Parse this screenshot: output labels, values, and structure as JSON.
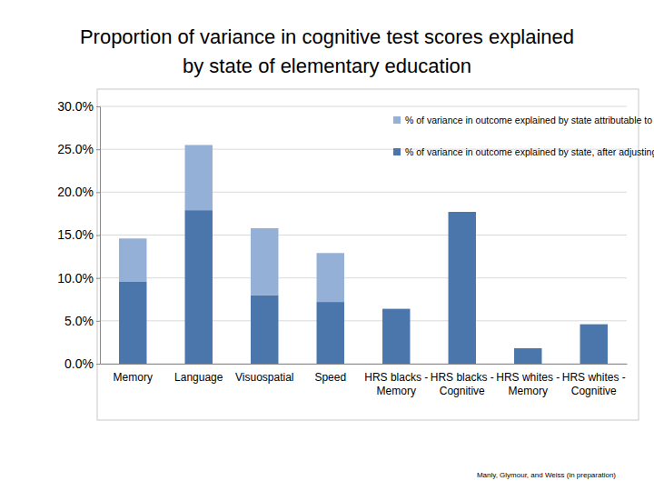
{
  "chart_data": {
    "type": "bar",
    "stacked": true,
    "title": "Proportion of variance in cognitive test scores explained by state of elementary education",
    "categories": [
      "Memory",
      "Language",
      "Visuospatial",
      "Speed",
      "HRS blacks - Memory",
      "HRS blacks - Cognitive",
      "HRS whites - Memory",
      "HRS whites - Cognitive"
    ],
    "series": [
      {
        "name": "% of variance in outcome explained by state, after adjusting for race",
        "color": "#4a76ab",
        "values": [
          9.6,
          17.9,
          8.0,
          7.2,
          6.4,
          17.7,
          1.8,
          4.6
        ]
      },
      {
        "name": "% of variance in outcome explained by state attributable to race",
        "color": "#95b0d6",
        "values": [
          5.0,
          7.6,
          7.8,
          5.7,
          null,
          null,
          null,
          null
        ]
      }
    ],
    "ylim": [
      0,
      30
    ],
    "yticks": [
      {
        "value": 0,
        "label": "0.0%"
      },
      {
        "value": 5,
        "label": "5.0%"
      },
      {
        "value": 10,
        "label": "10.0%"
      },
      {
        "value": 15,
        "label": "15.0%"
      },
      {
        "value": 20,
        "label": "20.0%"
      },
      {
        "value": 25,
        "label": "25.0%"
      },
      {
        "value": 30,
        "label": "30.0%"
      }
    ],
    "grid": true,
    "legend": "top-right",
    "annotations": [
      "Manly, Glymour, and Weiss (in preparation)"
    ]
  }
}
